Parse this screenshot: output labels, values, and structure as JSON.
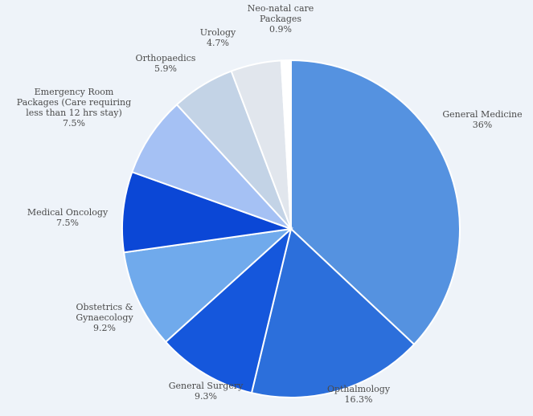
{
  "chart_data": {
    "type": "pie",
    "start_angle_deg": 0,
    "direction": "clockwise",
    "slices": [
      {
        "label": [
          "General Medicine"
        ],
        "value_label": "36%",
        "value": 36.0,
        "color": "#5592e0"
      },
      {
        "label": [
          "Opthalmology"
        ],
        "value_label": "16.3%",
        "value": 16.3,
        "color": "#2c6fdb"
      },
      {
        "label": [
          "General Surgery"
        ],
        "value_label": "9.3%",
        "value": 9.3,
        "color": "#1557dc"
      },
      {
        "label": [
          "Obstetrics &",
          "Gynaecology"
        ],
        "value_label": "9.2%",
        "value": 9.2,
        "color": "#70aaec"
      },
      {
        "label": [
          "Medical Oncology"
        ],
        "value_label": "7.5%",
        "value": 7.5,
        "color": "#0b47d6"
      },
      {
        "label": [
          "Emergency Room",
          "Packages (Care requiring",
          "less than 12 hrs stay)"
        ],
        "value_label": "7.5%",
        "value": 7.5,
        "color": "#a5c1f4"
      },
      {
        "label": [
          "Orthopaedics"
        ],
        "value_label": "5.9%",
        "value": 5.9,
        "color": "#c3d3e6"
      },
      {
        "label": [
          "Urology"
        ],
        "value_label": "4.7%",
        "value": 4.7,
        "color": "#e1e6ed"
      },
      {
        "label": [
          "Neo-natal care",
          "Packages"
        ],
        "value_label": "0.9%",
        "value": 0.9,
        "color": "#ffffff"
      }
    ]
  }
}
